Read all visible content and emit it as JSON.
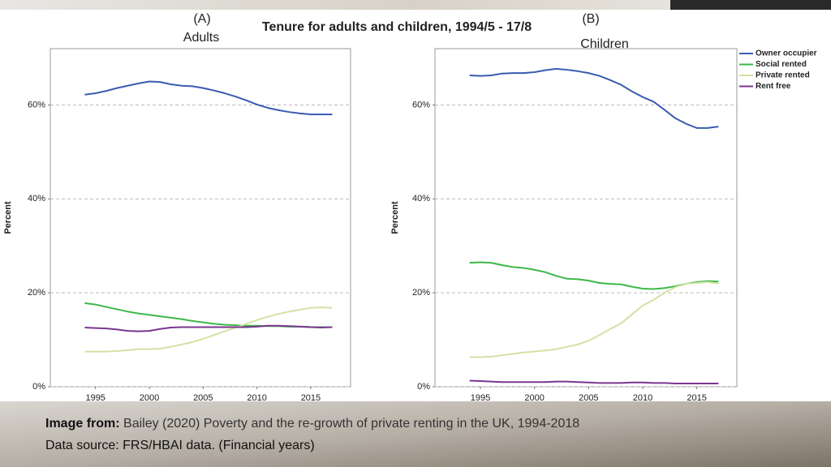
{
  "slide": {
    "title": "Tenure for adults and children, 1994/5 - 17/8",
    "caption_label": "Image from:",
    "caption_text": "Bailey (2020) Poverty and the re-growth of private renting in the UK, 1994-2018",
    "source": "Data source: FRS/HBAI data. (Financial years)"
  },
  "chart_data": [
    {
      "type": "line",
      "panel_label": "(A)",
      "subtitle": "Adults",
      "y_label": "Percent",
      "x": [
        1994,
        1995,
        1996,
        1997,
        1998,
        1999,
        2000,
        2001,
        2002,
        2003,
        2004,
        2005,
        2006,
        2007,
        2008,
        2009,
        2010,
        2011,
        2012,
        2013,
        2014,
        2015,
        2016,
        2017
      ],
      "xlim": [
        1990.8,
        2018.7
      ],
      "xticks": [
        1995,
        2000,
        2005,
        2010,
        2015
      ],
      "ylim": [
        0,
        72
      ],
      "yticks": [
        {
          "value": 0,
          "label": "0%"
        },
        {
          "value": 20,
          "label": "20%"
        },
        {
          "value": 40,
          "label": "40%"
        },
        {
          "value": 60,
          "label": "60%"
        }
      ],
      "grid": true,
      "series": [
        {
          "color": "#3a5bb0",
          "values": [
            62.2,
            62.5,
            63.0,
            63.6,
            64.1,
            64.6,
            65.0,
            64.9,
            64.4,
            64.1,
            64.0,
            63.6,
            63.1,
            62.5,
            61.8,
            61.0,
            60.1,
            59.4,
            58.9,
            58.5,
            58.2,
            58.0,
            58.0,
            58.0
          ]
        },
        {
          "color": "#3cb84a",
          "values": [
            17.8,
            17.5,
            17.0,
            16.5,
            16.0,
            15.6,
            15.3,
            15.0,
            14.7,
            14.4,
            14.0,
            13.7,
            13.4,
            13.2,
            13.1,
            13.0,
            13.0,
            12.9,
            12.9,
            12.8,
            12.8,
            12.7,
            12.7,
            12.7
          ]
        },
        {
          "color": "#d3e2a4",
          "values": [
            7.5,
            7.5,
            7.5,
            7.6,
            7.8,
            8.0,
            8.0,
            8.1,
            8.5,
            9.0,
            9.5,
            10.2,
            11.0,
            11.8,
            12.6,
            13.4,
            14.2,
            14.9,
            15.5,
            16.0,
            16.4,
            16.8,
            16.9,
            16.8
          ]
        },
        {
          "color": "#7b3590",
          "values": [
            12.6,
            12.5,
            12.4,
            12.2,
            11.9,
            11.8,
            11.9,
            12.3,
            12.6,
            12.7,
            12.7,
            12.7,
            12.7,
            12.7,
            12.7,
            12.7,
            12.8,
            13.0,
            13.0,
            12.9,
            12.8,
            12.7,
            12.6,
            12.7
          ]
        }
      ]
    },
    {
      "type": "line",
      "panel_label": "(B)",
      "subtitle": "Children",
      "y_label": "Percent",
      "x": [
        1994,
        1995,
        1996,
        1997,
        1998,
        1999,
        2000,
        2001,
        2002,
        2003,
        2004,
        2005,
        2006,
        2007,
        2008,
        2009,
        2010,
        2011,
        2012,
        2013,
        2014,
        2015,
        2016,
        2017
      ],
      "xlim": [
        1990.8,
        2018.7
      ],
      "xticks": [
        1995,
        2000,
        2005,
        2010,
        2015
      ],
      "ylim": [
        0,
        72
      ],
      "yticks": [
        {
          "value": 0,
          "label": "0%"
        },
        {
          "value": 20,
          "label": "20%"
        },
        {
          "value": 40,
          "label": "40%"
        },
        {
          "value": 60,
          "label": "60%"
        }
      ],
      "grid": true,
      "legend": "outside-right",
      "series": [
        {
          "name": "Owner occupier",
          "color": "#3a5bb0",
          "values": [
            66.3,
            66.2,
            66.3,
            66.7,
            66.8,
            66.8,
            67.0,
            67.4,
            67.7,
            67.5,
            67.2,
            66.8,
            66.2,
            65.3,
            64.3,
            62.9,
            61.7,
            60.7,
            59.0,
            57.2,
            56.0,
            55.1,
            55.1,
            55.4
          ]
        },
        {
          "name": "Social rented",
          "color": "#3cb84a",
          "values": [
            26.4,
            26.5,
            26.4,
            25.9,
            25.5,
            25.3,
            24.9,
            24.4,
            23.6,
            23.0,
            22.9,
            22.6,
            22.1,
            21.9,
            21.8,
            21.3,
            20.9,
            20.8,
            21.0,
            21.4,
            21.9,
            22.3,
            22.5,
            22.4
          ]
        },
        {
          "name": "Private rented",
          "color": "#d3e2a4",
          "values": [
            6.3,
            6.3,
            6.4,
            6.7,
            7.0,
            7.3,
            7.5,
            7.7,
            8.0,
            8.5,
            9.0,
            9.8,
            11.0,
            12.3,
            13.5,
            15.4,
            17.3,
            18.5,
            20.0,
            21.2,
            21.9,
            22.1,
            22.3,
            22.0
          ]
        },
        {
          "name": "Rent free",
          "color": "#7b3590",
          "values": [
            1.3,
            1.2,
            1.1,
            1.0,
            1.0,
            1.0,
            1.0,
            1.0,
            1.1,
            1.1,
            1.0,
            0.9,
            0.8,
            0.8,
            0.8,
            0.9,
            0.9,
            0.8,
            0.8,
            0.7,
            0.7,
            0.7,
            0.7,
            0.7
          ]
        }
      ]
    }
  ]
}
